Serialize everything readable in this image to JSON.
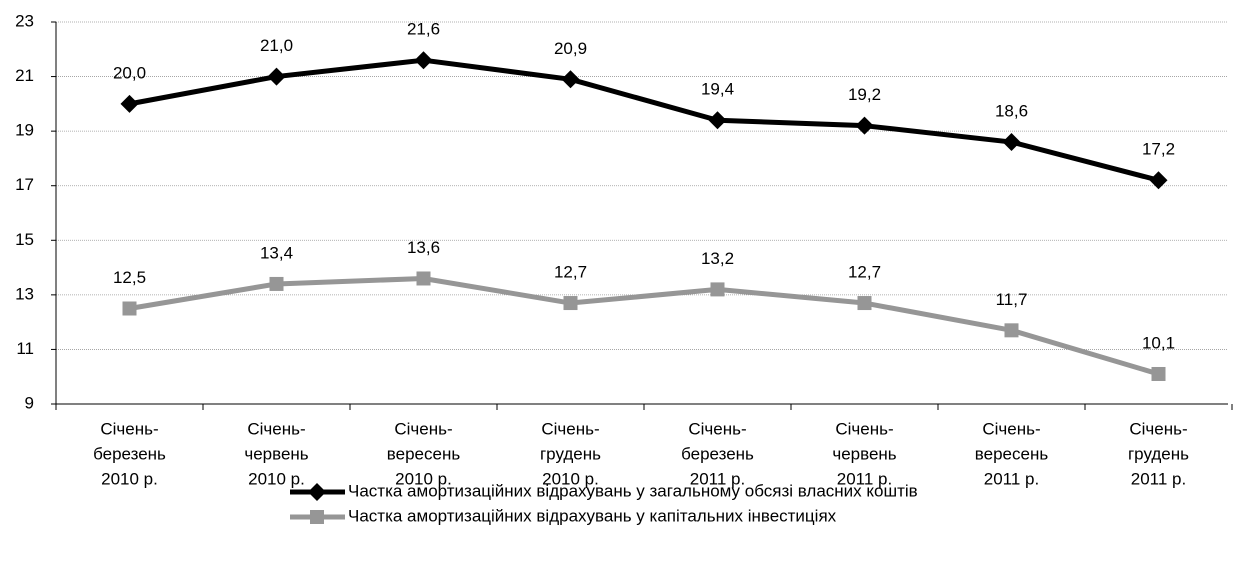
{
  "chart_data": {
    "type": "line",
    "categories": [
      [
        "Січень-",
        "березень",
        "2010 р."
      ],
      [
        "Січень-",
        "червень",
        "2010 р."
      ],
      [
        "Січень-",
        "вересень",
        "2010 р."
      ],
      [
        "Січень-",
        "грудень",
        "2010 р."
      ],
      [
        "Січень-",
        "березень",
        "2011 р."
      ],
      [
        "Січень-",
        "червень",
        "2011 р."
      ],
      [
        "Січень-",
        "вересень",
        "2011 р."
      ],
      [
        "Січень-",
        "грудень",
        "2011 р."
      ]
    ],
    "series": [
      {
        "name": "Частка амортизаційних відрахувань у загальному обсязі власних коштів",
        "color": "#000000",
        "marker": "diamond",
        "values": [
          20.0,
          21.0,
          21.6,
          20.9,
          19.4,
          19.2,
          18.6,
          17.2
        ],
        "value_labels": [
          "20,0",
          "21,0",
          "21,6",
          "20,9",
          "19,4",
          "19,2",
          "18,6",
          "17,2"
        ]
      },
      {
        "name": "Частка амортизаційних відрахувань у капітальних інвестиціях",
        "color": "#969696",
        "marker": "square",
        "values": [
          12.5,
          13.4,
          13.6,
          12.7,
          13.2,
          12.7,
          11.7,
          10.1
        ],
        "value_labels": [
          "12,5",
          "13,4",
          "13,6",
          "12,7",
          "13,2",
          "12,7",
          "11,7",
          "10,1"
        ]
      }
    ],
    "ylim": [
      9,
      23
    ],
    "yticks": [
      9,
      11,
      13,
      15,
      17,
      19,
      21,
      23
    ],
    "grid": true,
    "legend": "bottom"
  }
}
